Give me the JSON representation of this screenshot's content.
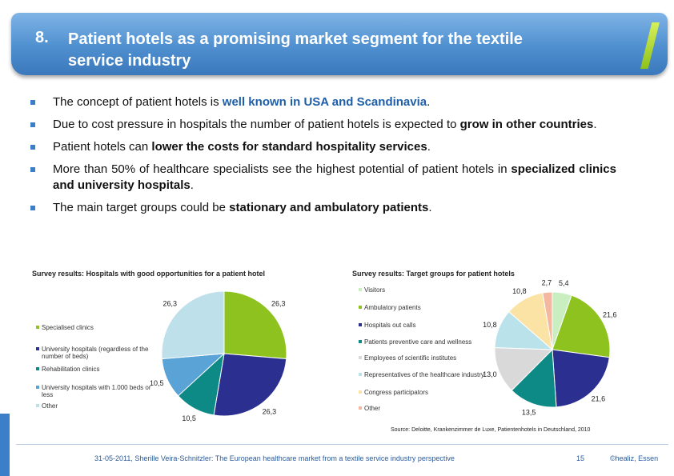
{
  "title": {
    "number": "8.",
    "text": "Patient hotels as a promising market segment for the textile service industry"
  },
  "bullets": [
    {
      "pre": "The concept of patient hotels is ",
      "emph": "well known in USA and Scandinavia",
      "post": "."
    },
    {
      "pre": "Due to cost pressure in hospitals the number of patient hotels is expected to ",
      "emph": "grow in other countries",
      "post": "."
    },
    {
      "pre": "Patient hotels can ",
      "emph": "lower the costs for standard hospitality services",
      "post": "."
    },
    {
      "pre": "More than 50% of healthcare specialists see the highest potential of patient hotels in ",
      "emph": "specialized clinics and university hospitals",
      "post": "."
    },
    {
      "pre": "The main target groups could be ",
      "emph": "stationary and ambulatory patients",
      "post": "."
    }
  ],
  "chart_data": [
    {
      "type": "pie",
      "title": "Survey results: Hospitals with good opportunities for a patient hotel",
      "categories": [
        "Specialised clinics",
        "University hospitals (regardless of the number of beds)",
        "Rehabilitation clinics",
        "University hospitals with 1.000 beds or less",
        "Other"
      ],
      "values": [
        26.3,
        26.3,
        10.5,
        10.5,
        26.3
      ],
      "value_labels": [
        "26,3",
        "26,3",
        "10,5",
        "10,5",
        "26,3"
      ],
      "colors": [
        "#8ec21e",
        "#2b2f8f",
        "#0e8a86",
        "#5aa3d6",
        "#bde0ea"
      ]
    },
    {
      "type": "pie",
      "title": "Survey results: Target groups for patient hotels",
      "categories": [
        "Visitors",
        "Ambulatory patients",
        "Hospitals out calls",
        "Patients preventive care and wellness",
        "Employees of scientific institutes",
        "Representatives of the healthcare industry",
        "Congress participators",
        "Other"
      ],
      "values": [
        5.4,
        21.6,
        21.6,
        13.5,
        13.0,
        10.8,
        10.8,
        2.7
      ],
      "value_labels": [
        "5,4",
        "21,6",
        "21,6",
        "13,5",
        "13,0",
        "10,8",
        "10,8",
        "2,7"
      ],
      "colors": [
        "#c9eec0",
        "#8ec21e",
        "#2b2f8f",
        "#0e8a86",
        "#d9d9d9",
        "#b9e2ea",
        "#fbe3a6",
        "#f4b7a0"
      ]
    }
  ],
  "chart1_legend": [
    "Specialised clinics",
    "University hospitals (regardless of the number of beds)",
    "Rehabilitation clinics",
    "University hospitals with 1.000 beds or less",
    "Other"
  ],
  "chart2_legend": [
    "Visitors",
    "Ambulatory patients",
    "Hospitals out calls",
    "Patients preventive care and wellness",
    "Employees of scientific institutes",
    "Representatives of the healthcare industry",
    "Congress participators",
    "Other"
  ],
  "source": "Source: Deloitte, Krankenzimmer de Luxe, Patientenhotels in Deutschland, 2010",
  "footer": {
    "text": "31-05-2011, Sherille Veira-Schnitzler: The European healthcare market from a textile service industry perspective",
    "page": "15",
    "copyright": "©healiz, Essen"
  },
  "colors": {
    "accent": "#3a7fc7",
    "highlight": "#1e5ea8"
  }
}
